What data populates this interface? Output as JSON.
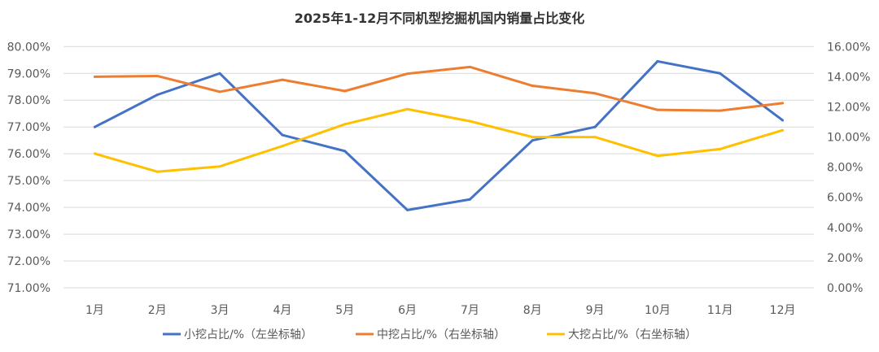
{
  "chart_data": {
    "type": "line",
    "title": "2025年1-12月不同机型挖掘机国内销量占比变化",
    "categories": [
      "1月",
      "2月",
      "3月",
      "4月",
      "5月",
      "6月",
      "7月",
      "8月",
      "9月",
      "10月",
      "11月",
      "12月"
    ],
    "y_left": {
      "range": [
        71,
        80
      ],
      "ticks": [
        "71.00%",
        "72.00%",
        "73.00%",
        "74.00%",
        "75.00%",
        "76.00%",
        "77.00%",
        "78.00%",
        "79.00%",
        "80.00%"
      ]
    },
    "y_right": {
      "range": [
        0,
        16
      ],
      "ticks": [
        "0.00%",
        "2.00%",
        "4.00%",
        "6.00%",
        "8.00%",
        "10.00%",
        "12.00%",
        "14.00%",
        "16.00%"
      ]
    },
    "grid": true,
    "legend": "bottom",
    "series": [
      {
        "name": "小挖占比/%（左坐标轴）",
        "axis": "left",
        "color": "#4472C4",
        "values": [
          77.0,
          78.2,
          79.0,
          76.7,
          76.1,
          73.9,
          74.3,
          76.5,
          77.0,
          79.45,
          79.0,
          77.25
        ]
      },
      {
        "name": "中挖占比/%（右坐标轴）",
        "axis": "right",
        "color": "#ED7D31",
        "values": [
          14.0,
          14.05,
          13.0,
          13.8,
          13.05,
          14.2,
          14.65,
          13.4,
          12.9,
          11.8,
          11.75,
          12.25
        ]
      },
      {
        "name": "大挖占比/%（右坐标轴）",
        "axis": "right",
        "color": "#FFC000",
        "values": [
          8.9,
          7.7,
          8.05,
          9.4,
          10.85,
          11.85,
          11.05,
          10.0,
          10.0,
          8.75,
          9.2,
          10.45
        ]
      }
    ]
  }
}
